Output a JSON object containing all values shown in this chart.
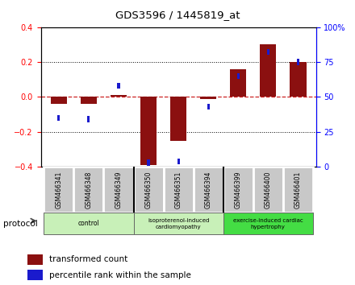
{
  "title": "GDS3596 / 1445819_at",
  "samples": [
    "GSM466341",
    "GSM466348",
    "GSM466349",
    "GSM466350",
    "GSM466351",
    "GSM466394",
    "GSM466399",
    "GSM466400",
    "GSM466401"
  ],
  "red_values": [
    -0.04,
    -0.04,
    0.01,
    -0.39,
    -0.25,
    -0.01,
    0.16,
    0.3,
    0.2
  ],
  "blue_percentile": [
    35,
    34,
    58,
    3,
    4,
    43,
    65,
    82,
    75
  ],
  "ylim_left": [
    -0.4,
    0.4
  ],
  "ylim_right": [
    0,
    100
  ],
  "yticks_left": [
    -0.4,
    -0.2,
    0.0,
    0.2,
    0.4
  ],
  "yticks_right": [
    0,
    25,
    50,
    75,
    100
  ],
  "group_ranges": [
    [
      0,
      3,
      "control",
      "#c8f0b8"
    ],
    [
      3,
      6,
      "isoproterenol-induced\ncardiomyopathy",
      "#c8f0b8"
    ],
    [
      6,
      9,
      "exercise-induced cardiac\nhypertrophy",
      "#44dd44"
    ]
  ],
  "protocol_label": "protocol",
  "red_bar_color": "#8b1010",
  "blue_dot_color": "#1a1acd",
  "zero_line_color": "#cc2222",
  "legend_red": "transformed count",
  "legend_blue": "percentile rank within the sample",
  "bar_width": 0.55
}
